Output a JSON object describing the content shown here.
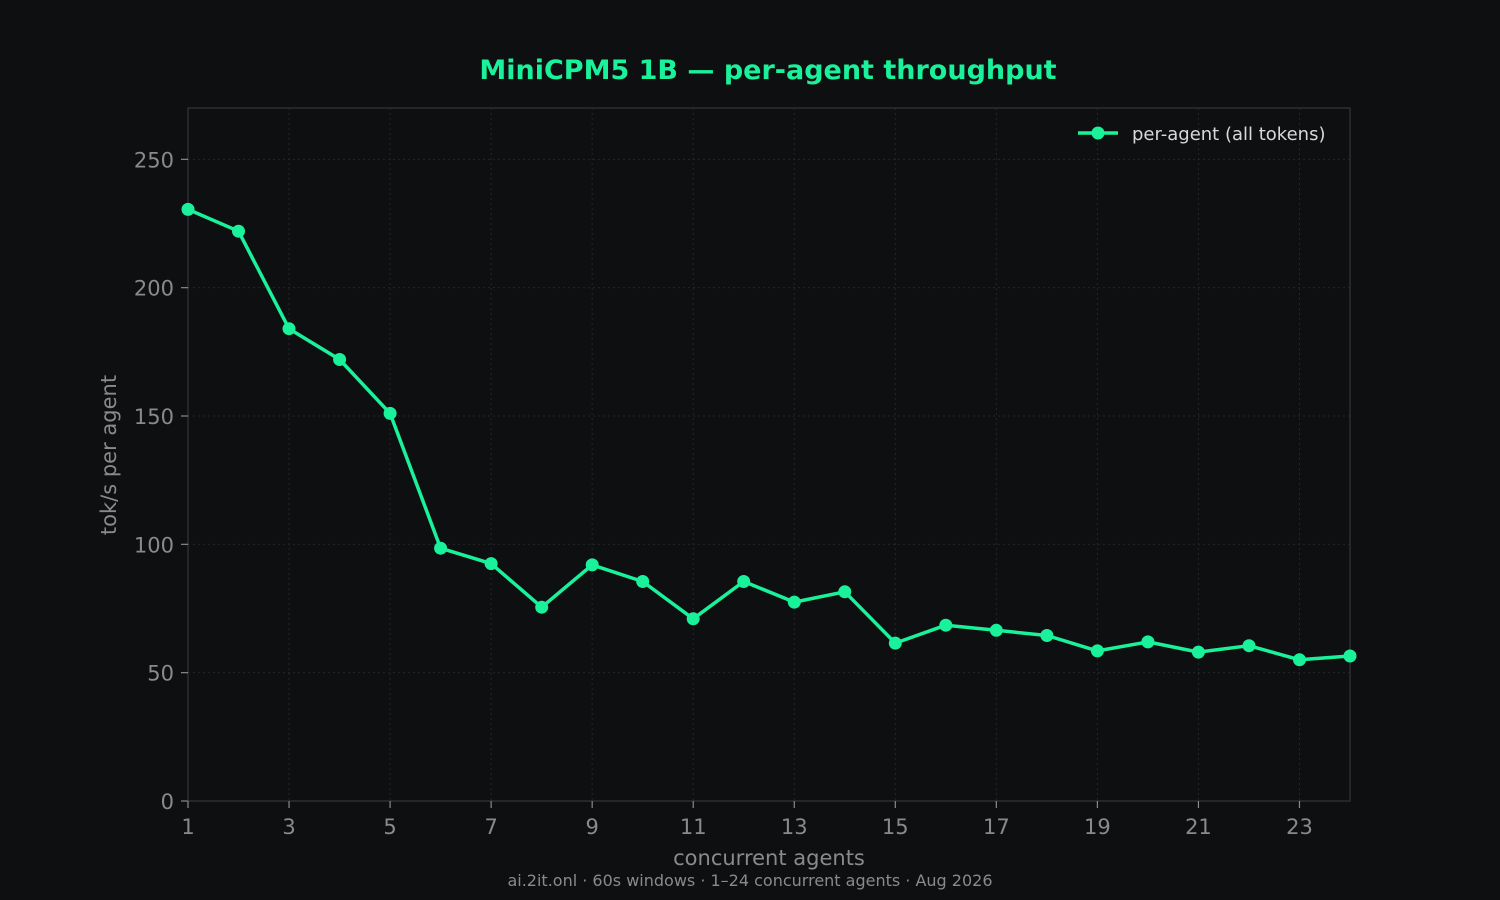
{
  "chart_data": {
    "type": "line",
    "title": "MiniCPM5 1B — per-agent throughput",
    "xlabel": "concurrent agents",
    "ylabel": "tok/s per agent",
    "xlim": [
      1,
      24
    ],
    "ylim": [
      0,
      270
    ],
    "xticks": [
      "1",
      "3",
      "5",
      "7",
      "9",
      "11",
      "13",
      "15",
      "17",
      "19",
      "21",
      "23"
    ],
    "yticks": [
      "0",
      "50",
      "100",
      "150",
      "200",
      "250"
    ],
    "grid": true,
    "legend_position": "top-right",
    "series": [
      {
        "name": "per-agent (all tokens)",
        "color": "#19f29a",
        "x": [
          1,
          2,
          3,
          4,
          5,
          6,
          7,
          8,
          9,
          10,
          11,
          12,
          13,
          14,
          15,
          16,
          17,
          18,
          19,
          20,
          21,
          22,
          23,
          24
        ],
        "values": [
          230.5,
          222,
          184,
          172,
          151,
          98.5,
          92.5,
          75.5,
          92,
          85.5,
          71,
          85.5,
          77.5,
          81.5,
          61.5,
          68.5,
          66.5,
          64.5,
          58.5,
          62,
          58,
          60.5,
          55,
          56.5
        ]
      }
    ],
    "footer": "ai.2it.onl · 60s windows · 1–24 concurrent agents · Aug 2026"
  }
}
